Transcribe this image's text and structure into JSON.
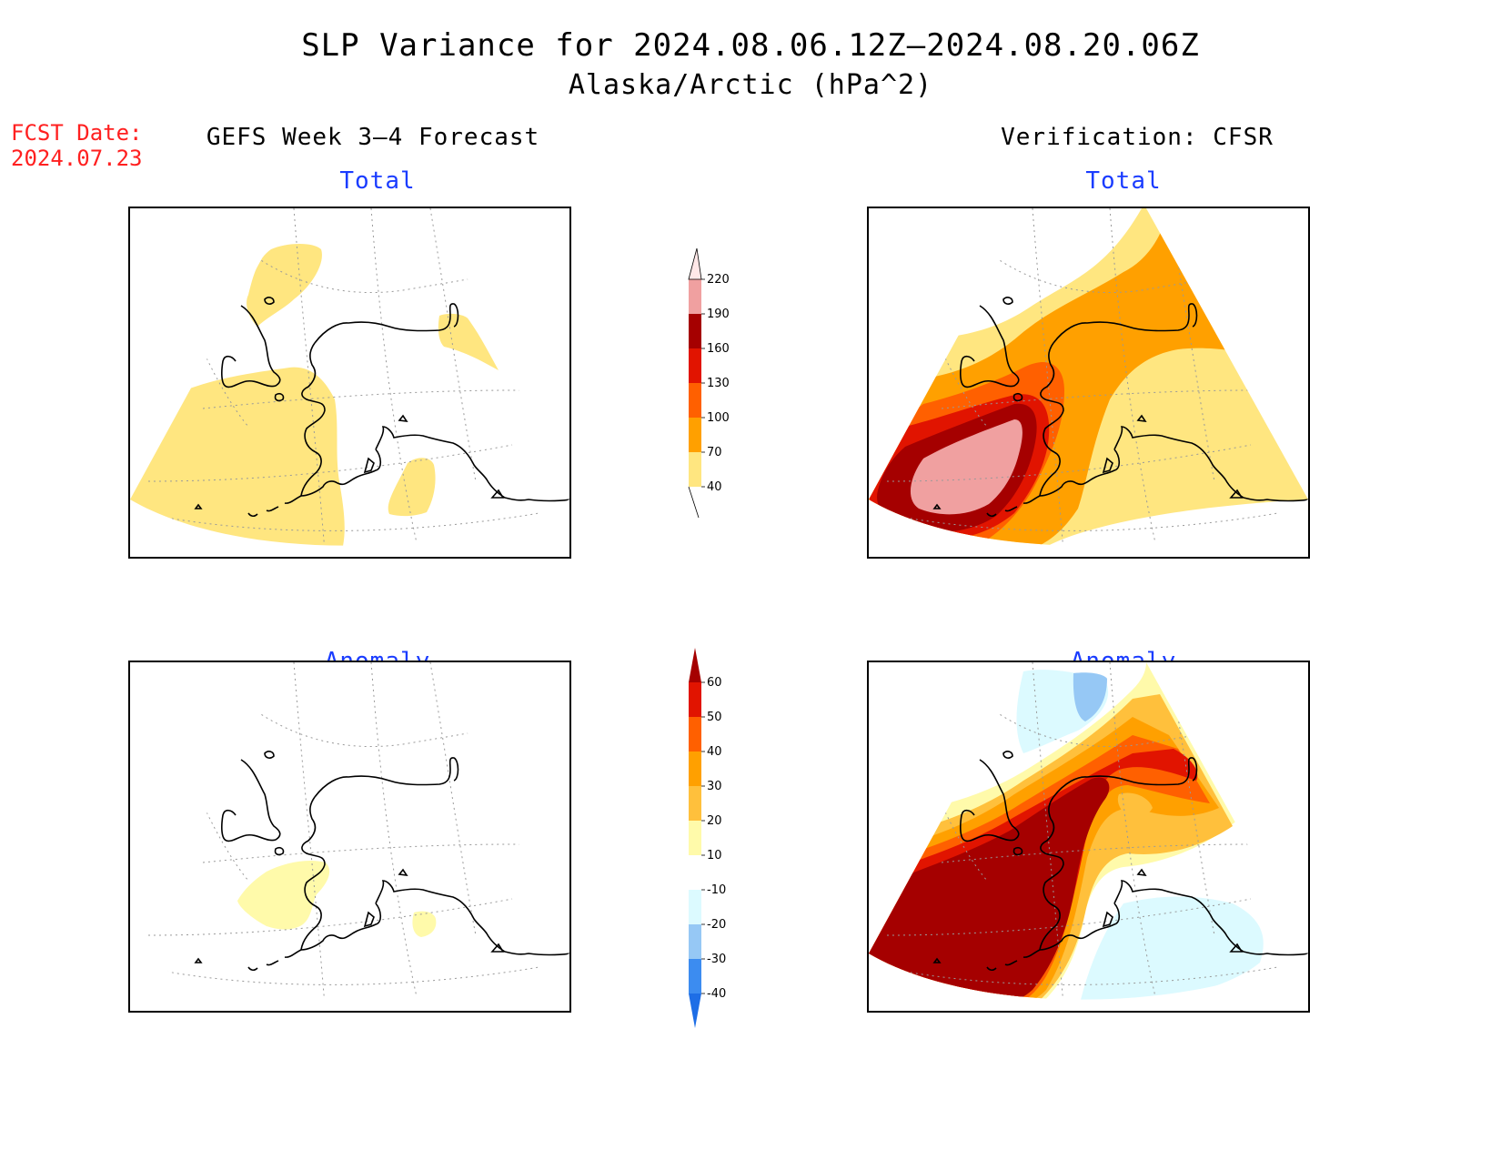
{
  "figure": {
    "title": "SLP Variance for 2024.08.06.12Z–2024.08.20.06Z",
    "subtitle": "Alaska/Arctic (hPa^2)",
    "fcst_date_label": "FCST Date:",
    "fcst_date_value": "2024.07.23",
    "left_column_title": "GEFS Week 3–4 Forecast",
    "right_column_title": "Verification: CFSR"
  },
  "panels": {
    "forecast_total": {
      "label": "Total"
    },
    "verification_total": {
      "label": "Total"
    },
    "forecast_anomaly": {
      "label": "Anomaly"
    },
    "verification_anomaly": {
      "label": "Anomaly"
    }
  },
  "colorbars": {
    "total": {
      "levels": [
        "40",
        "70",
        "100",
        "130",
        "160",
        "190",
        "220"
      ],
      "colors": [
        "#ffe680",
        "#ffa000",
        "#ff6000",
        "#e11400",
        "#a50000",
        "#f0a0a0",
        "#ffe8e8"
      ],
      "colors_meaning": "fill for each interval starting at the matching level; last is >220"
    },
    "anomaly": {
      "levels": [
        "-40",
        "-30",
        "-20",
        "-10",
        "10",
        "20",
        "30",
        "40",
        "50",
        "60"
      ],
      "colors_below": [
        "#1e6ee6",
        "#3c8cf0",
        "#96c8f5",
        "#dcfaff",
        "#ffffff",
        "#fffaaa",
        "#ffc03c",
        "#ffa000",
        "#ff6000",
        "#e11400",
        "#a50000"
      ],
      "colors_meaning": "fill for <-40, -40..-30, -30..-20, -20..-10, -10..10, 10..20, 20..30, 30..40, 40..50, 50..60, >60"
    }
  }
}
